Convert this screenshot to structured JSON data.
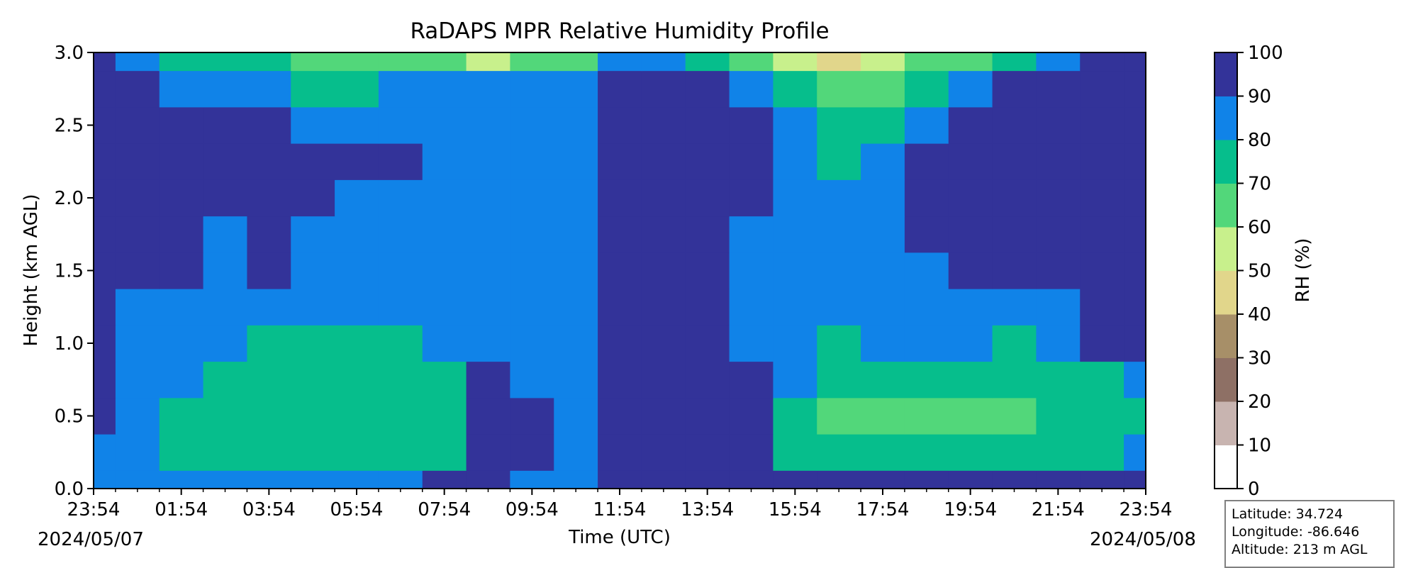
{
  "chart_data": {
    "type": "heatmap",
    "subtype": "filled-contour",
    "title": "RaDAPS MPR Relative Humidity Profile",
    "xlabel": "Time (UTC)",
    "ylabel": "Height (km AGL)",
    "x_tick_labels": [
      "23:54",
      "01:54",
      "03:54",
      "05:54",
      "07:54",
      "09:54",
      "11:54",
      "13:54",
      "15:54",
      "17:54",
      "19:54",
      "21:54",
      "23:54"
    ],
    "x_date_labels": {
      "start": "2024/05/07",
      "end": "2024/05/08"
    },
    "x_range_hours": [
      0,
      24
    ],
    "ylim": [
      0.0,
      3.0
    ],
    "y_tick_labels": [
      "0.0",
      "0.5",
      "1.0",
      "1.5",
      "2.0",
      "2.5",
      "3.0"
    ],
    "colorbar": {
      "label": "RH (%)",
      "ticks": [
        "0",
        "10",
        "20",
        "30",
        "40",
        "50",
        "60",
        "70",
        "80",
        "90",
        "100"
      ],
      "levels": [
        0,
        10,
        20,
        30,
        40,
        50,
        60,
        70,
        80,
        90,
        100
      ],
      "colors": [
        "#ffffff",
        "#c8b4b0",
        "#8e7065",
        "#a78f68",
        "#e1d68b",
        "#c8f08c",
        "#52d77a",
        "#06be8c",
        "#1083e8",
        "#333399"
      ]
    },
    "values_note": "Approximate RH (%) sampled from the plotted field; columns = hours since 23:54 on 2024/05/07 (0..24), rows = height km",
    "grid_x_hours": [
      0,
      1,
      2,
      3,
      4,
      5,
      6,
      7,
      8,
      9,
      10,
      11,
      12,
      13,
      14,
      15,
      16,
      17,
      18,
      19,
      20,
      21,
      22,
      23,
      24
    ],
    "grid_y_km": [
      0.0,
      0.25,
      0.5,
      0.75,
      1.0,
      1.25,
      1.5,
      1.75,
      2.0,
      2.25,
      2.5,
      2.75,
      3.0
    ],
    "rh_values": [
      [
        85,
        85,
        85,
        85,
        85,
        85,
        85,
        85,
        95,
        95,
        85,
        85,
        95,
        95,
        95,
        95,
        95,
        95,
        95,
        95,
        95,
        95,
        95,
        95,
        95
      ],
      [
        85,
        85,
        75,
        75,
        75,
        75,
        75,
        75,
        75,
        95,
        95,
        85,
        95,
        95,
        95,
        95,
        75,
        75,
        75,
        75,
        75,
        75,
        75,
        75,
        85
      ],
      [
        95,
        85,
        75,
        75,
        75,
        75,
        75,
        75,
        75,
        95,
        95,
        85,
        95,
        95,
        95,
        95,
        75,
        65,
        65,
        65,
        65,
        65,
        75,
        75,
        75
      ],
      [
        95,
        85,
        85,
        75,
        75,
        75,
        75,
        75,
        75,
        95,
        85,
        85,
        95,
        95,
        95,
        95,
        85,
        75,
        75,
        75,
        75,
        75,
        75,
        75,
        85
      ],
      [
        95,
        85,
        85,
        85,
        75,
        75,
        75,
        75,
        85,
        85,
        85,
        85,
        95,
        95,
        95,
        85,
        85,
        75,
        85,
        85,
        85,
        75,
        85,
        95,
        95
      ],
      [
        95,
        85,
        85,
        85,
        85,
        85,
        85,
        85,
        85,
        85,
        85,
        85,
        95,
        95,
        95,
        85,
        85,
        85,
        85,
        85,
        85,
        85,
        85,
        95,
        95
      ],
      [
        95,
        95,
        95,
        85,
        95,
        85,
        85,
        85,
        85,
        85,
        85,
        85,
        95,
        95,
        95,
        85,
        85,
        85,
        85,
        85,
        95,
        95,
        95,
        95,
        95
      ],
      [
        95,
        95,
        95,
        85,
        95,
        85,
        85,
        85,
        85,
        85,
        85,
        85,
        95,
        95,
        95,
        85,
        85,
        85,
        85,
        95,
        95,
        95,
        95,
        95,
        95
      ],
      [
        95,
        95,
        95,
        95,
        95,
        95,
        85,
        85,
        85,
        85,
        85,
        85,
        95,
        95,
        95,
        95,
        85,
        85,
        85,
        95,
        95,
        95,
        95,
        95,
        95
      ],
      [
        95,
        95,
        95,
        95,
        95,
        95,
        95,
        95,
        85,
        85,
        85,
        85,
        95,
        95,
        95,
        95,
        85,
        75,
        85,
        95,
        95,
        95,
        95,
        95,
        95
      ],
      [
        95,
        95,
        95,
        95,
        95,
        85,
        85,
        85,
        85,
        85,
        85,
        85,
        95,
        95,
        95,
        95,
        85,
        75,
        75,
        85,
        95,
        95,
        95,
        95,
        95
      ],
      [
        95,
        95,
        85,
        85,
        85,
        75,
        75,
        85,
        85,
        85,
        85,
        85,
        95,
        95,
        95,
        85,
        75,
        65,
        65,
        75,
        85,
        95,
        95,
        95,
        95
      ],
      [
        95,
        85,
        75,
        75,
        75,
        65,
        65,
        65,
        65,
        55,
        65,
        65,
        85,
        85,
        75,
        65,
        55,
        45,
        55,
        65,
        65,
        75,
        85,
        95,
        95
      ]
    ]
  },
  "info_box": {
    "latitude": "Latitude: 34.724",
    "longitude": "Longitude: -86.646",
    "altitude": "Altitude: 213 m AGL"
  }
}
